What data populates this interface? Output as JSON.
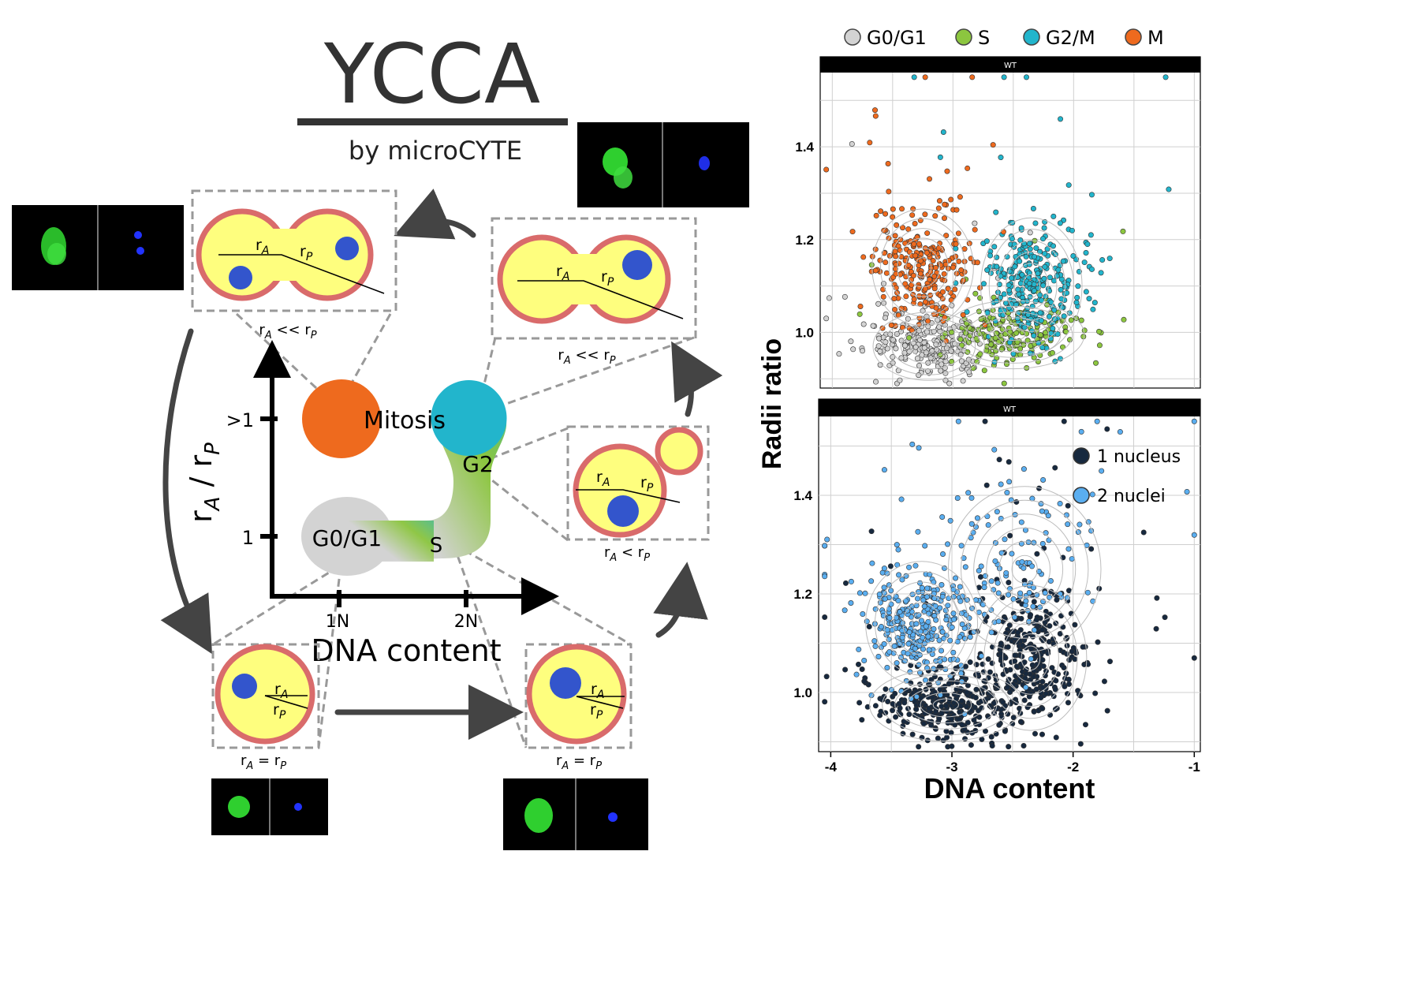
{
  "title": "YCCA",
  "subtitle": "by microCYTE",
  "diagram": {
    "y_axis_label_main": "r",
    "y_axis_label_sub_a": "A",
    "y_axis_label_slash": " / r",
    "y_axis_label_sub_p": "P",
    "y_ticks": [
      ">1",
      "1"
    ],
    "x_ticks": [
      "1N",
      "2N"
    ],
    "x_axis_label": "DNA content",
    "phases": {
      "mitosis": "Mitosis",
      "g2": "G2",
      "g0g1": "G0/G1",
      "s": "S"
    },
    "cells": {
      "ra": "r",
      "rp": "r",
      "sub_a": "A",
      "sub_p": "P"
    },
    "relations": {
      "top_left": "<<",
      "top_right": "<<",
      "right_mid": "<",
      "bottom_left": "=",
      "bottom_right": "="
    },
    "colors": {
      "mitosis": "#ee6a1e",
      "g2": "#22b5cc",
      "g0g1": "#d3d3d3",
      "s": "#8cc63f",
      "cell_fill": "#fefe7e",
      "cell_wall": "#d96b6b",
      "nucleus": "#3355cc"
    }
  },
  "legend_top": {
    "items": [
      {
        "label": "G0/G1",
        "color": "#d3d3d3"
      },
      {
        "label": "S",
        "color": "#8cc63f"
      },
      {
        "label": "G2/M",
        "color": "#22b5cc"
      },
      {
        "label": "M",
        "color": "#ee6a1e"
      }
    ]
  },
  "legend_bottom": {
    "items": [
      {
        "label": "1 nucleus",
        "color": "#17293f"
      },
      {
        "label": "2 nuclei",
        "color": "#5aaef0"
      }
    ]
  },
  "chart_data": [
    {
      "type": "scatter",
      "title": "WT",
      "xlabel": "DNA content",
      "ylabel": "Radii ratio",
      "xlim": [
        -4.1,
        -0.95
      ],
      "ylim": [
        0.88,
        1.56
      ],
      "x_ticks": [
        -4,
        -3,
        -2,
        -1
      ],
      "y_ticks": [
        1.0,
        1.2,
        1.4
      ],
      "grid": true,
      "legend": "top",
      "series": [
        {
          "name": "G0/G1",
          "color": "#d3d3d3",
          "clusters": [
            {
              "cx": -3.2,
              "cy": 0.97,
              "sx": 0.22,
              "sy": 0.035,
              "n": 260
            }
          ]
        },
        {
          "name": "S",
          "color": "#8cc63f",
          "clusters": [
            {
              "cx": -2.5,
              "cy": 0.995,
              "sx": 0.28,
              "sy": 0.035,
              "n": 200
            }
          ]
        },
        {
          "name": "G2/M",
          "color": "#22b5cc",
          "clusters": [
            {
              "cx": -2.35,
              "cy": 1.1,
              "sx": 0.2,
              "sy": 0.07,
              "n": 300
            }
          ]
        },
        {
          "name": "M",
          "color": "#ee6a1e",
          "clusters": [
            {
              "cx": -3.25,
              "cy": 1.14,
              "sx": 0.2,
              "sy": 0.06,
              "n": 260
            }
          ]
        }
      ]
    },
    {
      "type": "scatter",
      "title": "WT",
      "xlabel": "DNA content",
      "ylabel": "Radii ratio",
      "xlim": [
        -4.1,
        -0.95
      ],
      "ylim": [
        0.88,
        1.56
      ],
      "x_ticks": [
        -4,
        -3,
        -2,
        -1
      ],
      "y_ticks": [
        1.0,
        1.2,
        1.4
      ],
      "grid": true,
      "legend": "top-right",
      "series": [
        {
          "name": "1 nucleus",
          "color": "#17293f",
          "clusters": [
            {
              "cx": -3.05,
              "cy": 0.975,
              "sx": 0.3,
              "sy": 0.035,
              "n": 320
            },
            {
              "cx": -2.35,
              "cy": 1.07,
              "sx": 0.22,
              "sy": 0.07,
              "n": 320
            }
          ]
        },
        {
          "name": "2 nuclei",
          "color": "#5aaef0",
          "clusters": [
            {
              "cx": -3.25,
              "cy": 1.14,
              "sx": 0.22,
              "sy": 0.06,
              "n": 330
            },
            {
              "cx": -2.4,
              "cy": 1.25,
              "sx": 0.3,
              "sy": 0.08,
              "n": 120
            }
          ]
        }
      ]
    }
  ]
}
